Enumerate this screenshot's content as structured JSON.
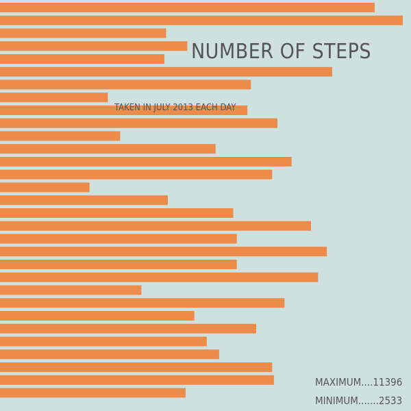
{
  "chart_data": {
    "type": "bar",
    "orientation": "horizontal",
    "title": "NUMBER OF STEPS",
    "subtitle": "TAKEN IN JULY 2013 EACH DAY",
    "values": [
      10600,
      11396,
      4700,
      5300,
      4650,
      9400,
      7100,
      3050,
      7000,
      7850,
      3400,
      6100,
      8250,
      7700,
      2533,
      4750,
      6600,
      8800,
      6700,
      9250,
      6700,
      9000,
      4000,
      8050,
      5500,
      7250,
      5850,
      6200,
      7700,
      7750,
      5250
    ],
    "xlim": [
      0,
      11396
    ],
    "bar_color": "#ec8b4a",
    "background_color": "#cfe1df",
    "text_color": "#555555"
  },
  "stats": {
    "max_label": "MAXIMUM",
    "max_sep": "....",
    "max_value": "11396",
    "min_label": "MINIMUM",
    "min_sep": ".......",
    "min_value": "2533"
  }
}
